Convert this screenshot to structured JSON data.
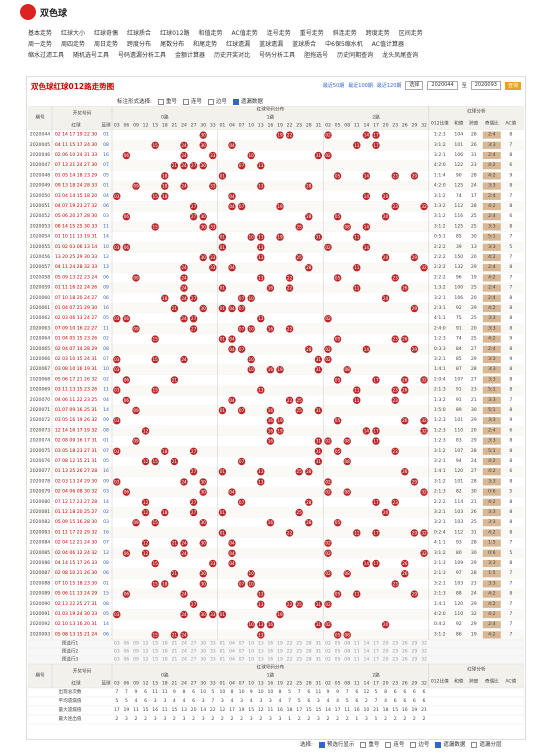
{
  "header": {
    "logo": "双色球"
  },
  "nav": [
    [
      "基本走势",
      "红球大小",
      "红球奇偶",
      "红球质合",
      "红球012路",
      "和值走势",
      "AC值走势",
      "连号走势",
      "重号走势",
      "斜连走势",
      "跨度走势",
      "区间走势"
    ],
    [
      "周一走势",
      "周四走势",
      "周日走势",
      "跨度分布",
      "尾数分布",
      "和尾走势",
      "红球遗漏",
      "蓝球遗漏",
      "蓝球质合",
      "中6保5缩水机",
      "AC值计算器"
    ],
    [
      "缩水过滤工具",
      "随机选号工具",
      "号码遗漏分析工具",
      "金额计算器",
      "历史开奖对比",
      "号码分析工具",
      "胆拖选号",
      "历史同期查询",
      "龙头凤尾查询"
    ]
  ],
  "panel": {
    "title": "双色球红球012路走势图",
    "recent": [
      "最近50期",
      "最近100期",
      "最近120期"
    ],
    "select": "选择",
    "from": "2020044",
    "to_label": "至",
    "to": "2020093",
    "query": "查询",
    "mark_label": "标注形式选择:",
    "mark_options": [
      "重号",
      "连号",
      "边号",
      "遗漏数据"
    ]
  },
  "table": {
    "h_issue": "期号",
    "h_draw": "开奖号码",
    "h_red": "红球",
    "h_blue": "蓝球",
    "h_dist": "红球号码分布",
    "h_analysis": "红球分析",
    "groups": [
      "0路",
      "1路",
      "2路"
    ],
    "columns": {
      "zero": [
        "03",
        "06",
        "09",
        "12",
        "15",
        "18",
        "21",
        "24",
        "27",
        "30",
        "33"
      ],
      "one": [
        "01",
        "04",
        "07",
        "10",
        "13",
        "16",
        "19",
        "22",
        "25",
        "28",
        "31"
      ],
      "two": [
        "02",
        "05",
        "08",
        "11",
        "14",
        "17",
        "20",
        "23",
        "26",
        "29",
        "32"
      ]
    },
    "analysis_heads": [
      "012比值",
      "和值",
      "跨度",
      "奇偶比",
      "AC值"
    ],
    "rows": [
      {
        "issue": 2020044,
        "reds": [
          "02",
          "14",
          "17",
          "19",
          "22",
          "30"
        ],
        "blue": "01",
        "r012": "1:2:3",
        "sum": 104,
        "span": 28,
        "oe": "2:4",
        "ac": 8
      },
      {
        "issue": 2020045,
        "reds": [
          "04",
          "11",
          "15",
          "17",
          "24",
          "30"
        ],
        "blue": "08",
        "r012": "3:1:2",
        "sum": 101,
        "span": 26,
        "oe": "3:3",
        "ac": 7
      },
      {
        "issue": 2020046,
        "reds": [
          "02",
          "06",
          "10",
          "24",
          "31",
          "33"
        ],
        "blue": "16",
        "r012": "3:2:1",
        "sum": 106,
        "span": 31,
        "oe": "2:4",
        "ac": 8
      },
      {
        "issue": 2020047,
        "reds": [
          "07",
          "13",
          "21",
          "24",
          "27",
          "30"
        ],
        "blue": "07",
        "r012": "4:2:0",
        "sum": 122,
        "span": 23,
        "oe": "4:2",
        "ac": 6
      },
      {
        "issue": 2020048,
        "reds": [
          "01",
          "05",
          "14",
          "18",
          "23",
          "29"
        ],
        "blue": "05",
        "r012": "1:1:4",
        "sum": 90,
        "span": 28,
        "oe": "4:2",
        "ac": 9
      },
      {
        "issue": 2020049,
        "reds": [
          "09",
          "13",
          "18",
          "24",
          "28",
          "33"
        ],
        "blue": "01",
        "r012": "4:2:0",
        "sum": 125,
        "span": 24,
        "oe": "3:3",
        "ac": 8
      },
      {
        "issue": 2020050,
        "reds": [
          "03",
          "04",
          "14",
          "15",
          "18",
          "20"
        ],
        "blue": "04",
        "r012": "3:1:2",
        "sum": 74,
        "span": 17,
        "oe": "2:4",
        "ac": 7
      },
      {
        "issue": 2020051,
        "reds": [
          "04",
          "07",
          "19",
          "23",
          "27",
          "32"
        ],
        "blue": "06",
        "r012": "1:3:2",
        "sum": 112,
        "span": 28,
        "oe": "4:2",
        "ac": 8
      },
      {
        "issue": 2020052,
        "reds": [
          "05",
          "06",
          "20",
          "27",
          "28",
          "30"
        ],
        "blue": "03",
        "r012": "3:1:2",
        "sum": 116,
        "span": 25,
        "oe": "2:4",
        "ac": 6
      },
      {
        "issue": 2020053,
        "reds": [
          "08",
          "14",
          "15",
          "25",
          "30",
          "33"
        ],
        "blue": "11",
        "r012": "3:1:2",
        "sum": 125,
        "span": 25,
        "oe": "3:3",
        "ac": 8
      },
      {
        "issue": 2020054,
        "reds": [
          "01",
          "10",
          "11",
          "13",
          "19",
          "31"
        ],
        "blue": "14",
        "r012": "0:5:1",
        "sum": 85,
        "span": 30,
        "oe": "5:1",
        "ac": 7
      },
      {
        "issue": 2020055,
        "reds": [
          "01",
          "02",
          "03",
          "06",
          "13",
          "14"
        ],
        "blue": "10",
        "r012": "2:2:2",
        "sum": 39,
        "span": 13,
        "oe": "3:3",
        "ac": 5
      },
      {
        "issue": 2020056,
        "reds": [
          "13",
          "20",
          "25",
          "29",
          "30",
          "33"
        ],
        "blue": "12",
        "r012": "2:2:2",
        "sum": 150,
        "span": 20,
        "oe": "4:2",
        "ac": 7
      },
      {
        "issue": 2020057,
        "reds": [
          "04",
          "11",
          "24",
          "28",
          "32",
          "33"
        ],
        "blue": "13",
        "r012": "2:2:2",
        "sum": 132,
        "span": 29,
        "oe": "2:4",
        "ac": 8
      },
      {
        "issue": 2020058,
        "reds": [
          "05",
          "09",
          "13",
          "22",
          "23",
          "24"
        ],
        "blue": "06",
        "r012": "2:2:2",
        "sum": 96,
        "span": 19,
        "oe": "4:2",
        "ac": 7
      },
      {
        "issue": 2020059,
        "reds": [
          "01",
          "11",
          "16",
          "22",
          "24",
          "26"
        ],
        "blue": "09",
        "r012": "1:3:2",
        "sum": 100,
        "span": 25,
        "oe": "2:4",
        "ac": 7
      },
      {
        "issue": 2020060,
        "reds": [
          "07",
          "10",
          "18",
          "20",
          "24",
          "27"
        ],
        "blue": "06",
        "r012": "3:2:1",
        "sum": 106,
        "span": 20,
        "oe": "2:4",
        "ac": 8
      },
      {
        "issue": 2020061,
        "reds": [
          "01",
          "04",
          "07",
          "21",
          "29",
          "30"
        ],
        "blue": "16",
        "r012": "2:3:1",
        "sum": 92,
        "span": 29,
        "oe": "4:2",
        "ac": 8
      },
      {
        "issue": 2020062,
        "reds": [
          "02",
          "03",
          "06",
          "13",
          "24",
          "27"
        ],
        "blue": "05",
        "r012": "4:1:1",
        "sum": 75,
        "span": 25,
        "oe": "3:3",
        "ac": 8
      },
      {
        "issue": 2020063,
        "reds": [
          "07",
          "09",
          "10",
          "16",
          "22",
          "27"
        ],
        "blue": "11",
        "r012": "2:4:0",
        "sum": 91,
        "span": 20,
        "oe": "3:3",
        "ac": 8
      },
      {
        "issue": 2020064,
        "reds": [
          "01",
          "04",
          "05",
          "15",
          "23",
          "26"
        ],
        "blue": "02",
        "r012": "1:2:3",
        "sum": 74,
        "span": 25,
        "oe": "4:2",
        "ac": 9
      },
      {
        "issue": 2020065,
        "reds": [
          "02",
          "04",
          "07",
          "14",
          "28",
          "29"
        ],
        "blue": "08",
        "r012": "0:3:3",
        "sum": 84,
        "span": 27,
        "oe": "2:4",
        "ac": 8
      },
      {
        "issue": 2020066,
        "reds": [
          "02",
          "03",
          "10",
          "15",
          "24",
          "31"
        ],
        "blue": "07",
        "r012": "3:2:1",
        "sum": 85,
        "span": 29,
        "oe": "3:3",
        "ac": 9
      },
      {
        "issue": 2020067,
        "reds": [
          "03",
          "08",
          "10",
          "16",
          "19",
          "31"
        ],
        "blue": "10",
        "r012": "1:4:1",
        "sum": 87,
        "span": 28,
        "oe": "3:3",
        "ac": 8
      },
      {
        "issue": 2020068,
        "reds": [
          "05",
          "06",
          "17",
          "21",
          "26",
          "32"
        ],
        "blue": "02",
        "r012": "2:0:4",
        "sum": 107,
        "span": 27,
        "oe": "3:3",
        "ac": 8
      },
      {
        "issue": 2020069,
        "reds": [
          "03",
          "11",
          "13",
          "15",
          "23",
          "26"
        ],
        "blue": "11",
        "r012": "2:1:3",
        "sum": 91,
        "span": 23,
        "oe": "5:1",
        "ac": 8
      },
      {
        "issue": 2020070,
        "reds": [
          "04",
          "06",
          "11",
          "22",
          "23",
          "25"
        ],
        "blue": "04",
        "r012": "1:3:2",
        "sum": 91,
        "span": 21,
        "oe": "3:3",
        "ac": 7
      },
      {
        "issue": 2020071,
        "reds": [
          "01",
          "07",
          "09",
          "16",
          "25",
          "31"
        ],
        "blue": "14",
        "r012": "1:5:0",
        "sum": 89,
        "span": 30,
        "oe": "5:1",
        "ac": 8
      },
      {
        "issue": 2020072,
        "reds": [
          "03",
          "05",
          "16",
          "19",
          "26",
          "32"
        ],
        "blue": "09",
        "r012": "1:2:3",
        "sum": 101,
        "span": 29,
        "oe": "3:3",
        "ac": 9
      },
      {
        "issue": 2020073,
        "reds": [
          "12",
          "14",
          "16",
          "17",
          "19",
          "32"
        ],
        "blue": "08",
        "r012": "1:2:3",
        "sum": 110,
        "span": 20,
        "oe": "2:4",
        "ac": 6
      },
      {
        "issue": 2020074,
        "reds": [
          "02",
          "08",
          "09",
          "16",
          "17",
          "31"
        ],
        "blue": "01",
        "r012": "1:2:3",
        "sum": 83,
        "span": 29,
        "oe": "3:3",
        "ac": 8
      },
      {
        "issue": 2020075,
        "reds": [
          "03",
          "05",
          "18",
          "23",
          "27",
          "31"
        ],
        "blue": "07",
        "r012": "3:1:2",
        "sum": 107,
        "span": 28,
        "oe": "5:1",
        "ac": 8
      },
      {
        "issue": 2020076,
        "reds": [
          "07",
          "08",
          "12",
          "15",
          "21",
          "31"
        ],
        "blue": "05",
        "r012": "3:2:1",
        "sum": 94,
        "span": 24,
        "oe": "4:2",
        "ac": 8
      },
      {
        "issue": 2020077,
        "reds": [
          "01",
          "13",
          "25",
          "26",
          "27",
          "28"
        ],
        "blue": "16",
        "r012": "1:4:1",
        "sum": 120,
        "span": 27,
        "oe": "4:2",
        "ac": 6
      },
      {
        "issue": 2020078,
        "reds": [
          "02",
          "03",
          "13",
          "24",
          "29",
          "30"
        ],
        "blue": "09",
        "r012": "3:1:2",
        "sum": 101,
        "span": 28,
        "oe": "3:3",
        "ac": 8
      },
      {
        "issue": 2020079,
        "reds": [
          "02",
          "04",
          "06",
          "08",
          "30",
          "32"
        ],
        "blue": "03",
        "r012": "2:1:3",
        "sum": 82,
        "span": 30,
        "oe": "0:6",
        "ac": 5
      },
      {
        "issue": 2020080,
        "reds": [
          "07",
          "12",
          "17",
          "23",
          "27",
          "28"
        ],
        "blue": "14",
        "r012": "2:2:2",
        "sum": 114,
        "span": 21,
        "oe": "4:2",
        "ac": 8
      },
      {
        "issue": 2020081,
        "reds": [
          "01",
          "12",
          "18",
          "20",
          "25",
          "27"
        ],
        "blue": "02",
        "r012": "3:2:1",
        "sum": 103,
        "span": 26,
        "oe": "3:3",
        "ac": 8
      },
      {
        "issue": 2020082,
        "reds": [
          "05",
          "09",
          "15",
          "16",
          "28",
          "30"
        ],
        "blue": "03",
        "r012": "3:2:1",
        "sum": 103,
        "span": 25,
        "oe": "3:3",
        "ac": 8
      },
      {
        "issue": 2020083,
        "reds": [
          "01",
          "11",
          "17",
          "22",
          "29",
          "32"
        ],
        "blue": "16",
        "r012": "0:2:4",
        "sum": 112,
        "span": 31,
        "oe": "4:2",
        "ac": 8
      },
      {
        "issue": 2020084,
        "reds": [
          "02",
          "04",
          "12",
          "21",
          "24",
          "30"
        ],
        "blue": "07",
        "r012": "4:1:1",
        "sum": 93,
        "span": 28,
        "oe": "1:5",
        "ac": 7
      },
      {
        "issue": 2020085,
        "reds": [
          "02",
          "04",
          "06",
          "12",
          "24",
          "32"
        ],
        "blue": "12",
        "r012": "3:1:2",
        "sum": 80,
        "span": 30,
        "oe": "0:6",
        "ac": 5
      },
      {
        "issue": 2020086,
        "reds": [
          "04",
          "14",
          "15",
          "17",
          "26",
          "33"
        ],
        "blue": "08",
        "r012": "2:1:3",
        "sum": 109,
        "span": 29,
        "oe": "3:3",
        "ac": 8
      },
      {
        "issue": 2020087,
        "reds": [
          "02",
          "08",
          "10",
          "21",
          "26",
          "30"
        ],
        "blue": "06",
        "r012": "2:1:3",
        "sum": 97,
        "span": 28,
        "oe": "1:5",
        "ac": 7
      },
      {
        "issue": 2020088,
        "reds": [
          "07",
          "10",
          "15",
          "18",
          "23",
          "30"
        ],
        "blue": "01",
        "r012": "3:2:1",
        "sum": 103,
        "span": 23,
        "oe": "3:3",
        "ac": 7
      },
      {
        "issue": 2020089,
        "reds": [
          "05",
          "06",
          "11",
          "13",
          "24",
          "29"
        ],
        "blue": "15",
        "r012": "2:1:3",
        "sum": 88,
        "span": 24,
        "oe": "4:2",
        "ac": 8
      },
      {
        "issue": 2020090,
        "reds": [
          "02",
          "13",
          "22",
          "25",
          "27",
          "31"
        ],
        "blue": "08",
        "r012": "1:4:1",
        "sum": 120,
        "span": 29,
        "oe": "4:2",
        "ac": 7
      },
      {
        "issue": 2020091,
        "reds": [
          "01",
          "03",
          "19",
          "24",
          "30",
          "33"
        ],
        "blue": "05",
        "r012": "4:2:0",
        "sum": 110,
        "span": 32,
        "oe": "4:2",
        "ac": 7
      },
      {
        "issue": 2020092,
        "reds": [
          "02",
          "10",
          "13",
          "16",
          "20",
          "31"
        ],
        "blue": "14",
        "r012": "0:4:2",
        "sum": 92,
        "span": 29,
        "oe": "2:4",
        "ac": 7
      },
      {
        "issue": 2020093,
        "reds": [
          "05",
          "08",
          "13",
          "15",
          "21",
          "24"
        ],
        "blue": "06",
        "r012": "3:1:2",
        "sum": 86,
        "span": 19,
        "oe": "4:2",
        "ac": 7
      }
    ],
    "preselect": [
      "预选行1",
      "预选行2",
      "预选行3"
    ],
    "stats": [
      {
        "label": "出现总次数",
        "values": [
          7,
          7,
          9,
          6,
          11,
          11,
          9,
          8,
          6,
          10,
          5,
          10,
          8,
          10,
          9,
          10,
          10,
          8,
          5,
          7,
          6,
          11,
          9,
          9,
          7,
          6,
          12,
          5,
          8,
          6,
          6,
          6,
          6
        ]
      },
      {
        "label": "平均遗漏值",
        "values": [
          5,
          5,
          4,
          6,
          3,
          3,
          4,
          4,
          6,
          3,
          7,
          3,
          4,
          3,
          4,
          3,
          3,
          4,
          7,
          5,
          6,
          3,
          4,
          4,
          5,
          6,
          2,
          7,
          4,
          6,
          6,
          6,
          6
        ]
      },
      {
        "label": "最大遗漏值",
        "values": [
          17,
          19,
          11,
          15,
          16,
          11,
          15,
          13,
          20,
          14,
          22,
          12,
          17,
          19,
          15,
          12,
          11,
          16,
          18,
          17,
          15,
          15,
          14,
          17,
          11,
          16,
          10,
          21,
          18,
          15,
          16,
          19,
          21
        ]
      },
      {
        "label": "最大连出值",
        "values": [
          2,
          3,
          2,
          2,
          3,
          3,
          2,
          3,
          2,
          3,
          2,
          2,
          2,
          2,
          3,
          2,
          3,
          3,
          1,
          2,
          2,
          3,
          2,
          2,
          2,
          1,
          3,
          1,
          2,
          2,
          2,
          2,
          2
        ]
      }
    ]
  },
  "footer": {
    "label": "选择:",
    "options": [
      "预选行显示",
      "重号",
      "连号",
      "边号",
      "遗漏数据",
      "遗漏分层"
    ]
  }
}
